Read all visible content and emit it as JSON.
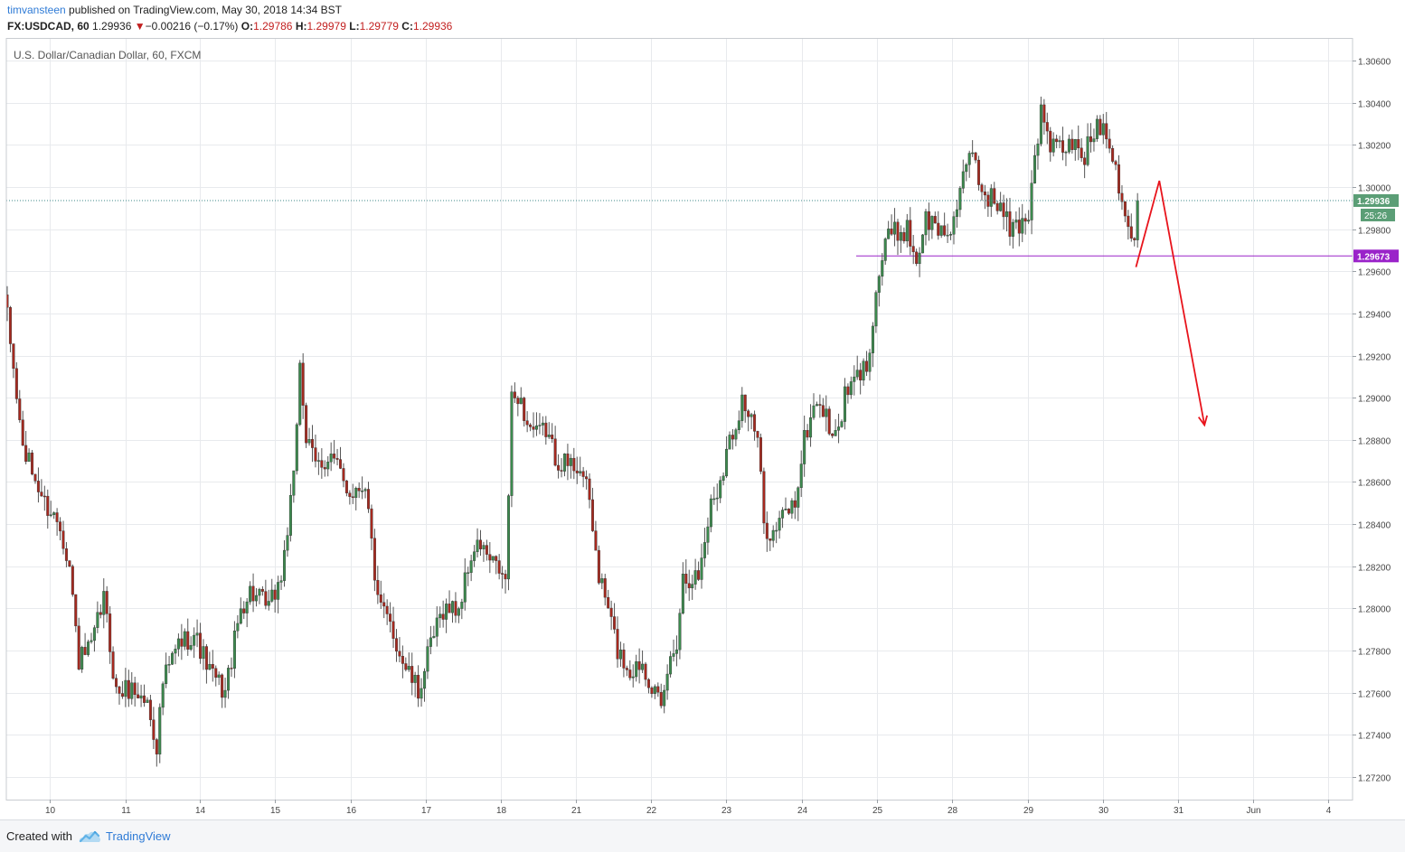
{
  "header": {
    "username": "timvansteen",
    "published_text": "published on TradingView.com, May 30, 2018 14:34 BST",
    "symbol": "FX:USDCAD, 60",
    "last": "1.29936",
    "direction_icon": "down-triangle-icon",
    "change": "−0.00216 (−0.17%)",
    "open_label": "O:",
    "open": "1.29786",
    "high_label": "H:",
    "high": "1.29979",
    "low_label": "L:",
    "low": "1.29779",
    "close_label": "C:",
    "close": "1.29936"
  },
  "footer": {
    "created_with": "Created with",
    "logo_icon": "tradingview-cloud-icon",
    "brand": "TradingView"
  },
  "colors": {
    "up": "#3c8a4e",
    "down": "#a6291f",
    "grid": "#e8eaed",
    "price_line": "#3c8a8a",
    "level_line": "#9a23c9",
    "arrow": "#e8141c",
    "price_badge": "#5b9e76",
    "level_badge": "#9a23c9"
  },
  "chart_data": {
    "type": "candlestick",
    "title": "U.S. Dollar/Canadian Dollar, 60, FXCM",
    "xlabel": "",
    "ylabel": "",
    "ylim": [
      1.271,
      1.3068
    ],
    "y_ticks": [
      "1.30600",
      "1.30400",
      "1.30200",
      "1.30000",
      "1.29800",
      "1.29600",
      "1.29400",
      "1.29200",
      "1.29000",
      "1.28800",
      "1.28600",
      "1.28400",
      "1.28200",
      "1.28000",
      "1.27800",
      "1.27600",
      "1.27400",
      "1.27200"
    ],
    "x_ticks": [
      "10",
      "11",
      "14",
      "15",
      "16",
      "17",
      "18",
      "21",
      "22",
      "23",
      "24",
      "25",
      "28",
      "29",
      "30",
      "31",
      "Jun",
      "4"
    ],
    "grid": true,
    "last_price": "1.29936",
    "countdown": "25:26",
    "horizontal_level": "1.29673",
    "anchors": [
      [
        0,
        1.2938
      ],
      [
        5,
        1.2876
      ],
      [
        12,
        1.285
      ],
      [
        17,
        1.284
      ],
      [
        20,
        1.282
      ],
      [
        23,
        1.2775
      ],
      [
        27,
        1.2781
      ],
      [
        31,
        1.2805
      ],
      [
        35,
        1.276
      ],
      [
        40,
        1.2762
      ],
      [
        45,
        1.2755
      ],
      [
        48,
        1.2735
      ],
      [
        50,
        1.2765
      ],
      [
        55,
        1.2783
      ],
      [
        60,
        1.2788
      ],
      [
        65,
        1.277
      ],
      [
        70,
        1.276
      ],
      [
        75,
        1.28
      ],
      [
        78,
        1.2808
      ],
      [
        84,
        1.28
      ],
      [
        88,
        1.2815
      ],
      [
        92,
        1.286
      ],
      [
        94,
        1.2918
      ],
      [
        96,
        1.288
      ],
      [
        99,
        1.2868
      ],
      [
        104,
        1.2872
      ],
      [
        110,
        1.2855
      ],
      [
        115,
        1.286
      ],
      [
        119,
        1.2802
      ],
      [
        123,
        1.2792
      ],
      [
        127,
        1.2775
      ],
      [
        132,
        1.276
      ],
      [
        136,
        1.2782
      ],
      [
        140,
        1.28
      ],
      [
        145,
        1.28
      ],
      [
        149,
        1.2825
      ],
      [
        152,
        1.283
      ],
      [
        155,
        1.2822
      ],
      [
        158,
        1.2818
      ],
      [
        160,
        1.2812
      ],
      [
        162,
        1.2898
      ],
      [
        164,
        1.2902
      ],
      [
        167,
        1.2888
      ],
      [
        170,
        1.2882
      ],
      [
        173,
        1.2885
      ],
      [
        176,
        1.2872
      ],
      [
        180,
        1.2868
      ],
      [
        184,
        1.2868
      ],
      [
        187,
        1.285
      ],
      [
        190,
        1.2815
      ],
      [
        193,
        1.28
      ],
      [
        196,
        1.278
      ],
      [
        200,
        1.277
      ],
      [
        204,
        1.2775
      ],
      [
        208,
        1.276
      ],
      [
        210,
        1.275
      ],
      [
        212,
        1.277
      ],
      [
        215,
        1.2785
      ],
      [
        217,
        1.2815
      ],
      [
        222,
        1.2815
      ],
      [
        226,
        1.285
      ],
      [
        228,
        1.2856
      ],
      [
        232,
        1.288
      ],
      [
        234,
        1.2888
      ],
      [
        236,
        1.29
      ],
      [
        238,
        1.2892
      ],
      [
        241,
        1.288
      ],
      [
        243,
        1.284
      ],
      [
        246,
        1.2835
      ],
      [
        250,
        1.2846
      ],
      [
        253,
        1.285
      ],
      [
        256,
        1.288
      ],
      [
        260,
        1.29
      ],
      [
        263,
        1.289
      ],
      [
        266,
        1.288
      ],
      [
        269,
        1.29
      ],
      [
        273,
        1.291
      ],
      [
        276,
        1.2915
      ],
      [
        279,
        1.295
      ],
      [
        282,
        1.2975
      ],
      [
        285,
        1.2978
      ],
      [
        289,
        1.298
      ],
      [
        292,
        1.2965
      ],
      [
        295,
        1.2985
      ],
      [
        299,
        1.298
      ],
      [
        302,
        1.2978
      ],
      [
        305,
        1.299
      ],
      [
        308,
        1.3008
      ],
      [
        310,
        1.3018
      ],
      [
        313,
        1.2998
      ],
      [
        316,
        1.2995
      ],
      [
        319,
        1.299
      ],
      [
        322,
        1.298
      ],
      [
        325,
        1.2982
      ],
      [
        328,
        1.2988
      ],
      [
        330,
        1.3015
      ],
      [
        332,
        1.3035
      ],
      [
        335,
        1.302
      ],
      [
        338,
        1.3018
      ],
      [
        342,
        1.302
      ],
      [
        346,
        1.3015
      ],
      [
        350,
        1.303
      ],
      [
        353,
        1.3028
      ],
      [
        356,
        1.301
      ],
      [
        358,
        1.2995
      ],
      [
        360,
        1.2982
      ],
      [
        361,
        1.2975
      ],
      [
        362,
        1.2975
      ],
      [
        363,
        1.2994
      ]
    ],
    "annotations": [
      {
        "type": "arrow_path",
        "points": [
          [
            1.2962,
            362.5
          ],
          [
            1.3003,
            370.0
          ],
          [
            1.2887,
            384.5
          ]
        ]
      }
    ]
  }
}
